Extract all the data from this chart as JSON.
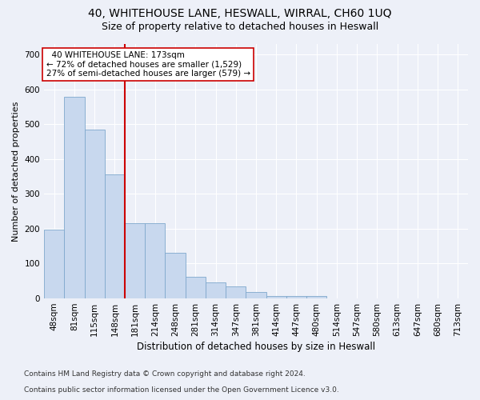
{
  "title1": "40, WHITEHOUSE LANE, HESWALL, WIRRAL, CH60 1UQ",
  "title2": "Size of property relative to detached houses in Heswall",
  "xlabel": "Distribution of detached houses by size in Heswall",
  "ylabel": "Number of detached properties",
  "categories": [
    "48sqm",
    "81sqm",
    "115sqm",
    "148sqm",
    "181sqm",
    "214sqm",
    "248sqm",
    "281sqm",
    "314sqm",
    "347sqm",
    "381sqm",
    "414sqm",
    "447sqm",
    "480sqm",
    "514sqm",
    "547sqm",
    "580sqm",
    "613sqm",
    "647sqm",
    "680sqm",
    "713sqm"
  ],
  "values": [
    197,
    578,
    484,
    355,
    217,
    217,
    130,
    63,
    46,
    35,
    18,
    8,
    8,
    8,
    0,
    0,
    0,
    0,
    0,
    0,
    0
  ],
  "bar_color": "#c8d8ee",
  "bar_edge_color": "#7fa8cc",
  "vline_color": "#cc0000",
  "vline_x_index": 4,
  "annotation_text": "  40 WHITEHOUSE LANE: 173sqm\n← 72% of detached houses are smaller (1,529)\n27% of semi-detached houses are larger (579) →",
  "annotation_box_color": "white",
  "annotation_box_edge": "#cc0000",
  "ylim": [
    0,
    730
  ],
  "yticks": [
    0,
    100,
    200,
    300,
    400,
    500,
    600,
    700
  ],
  "footnote1": "Contains HM Land Registry data © Crown copyright and database right 2024.",
  "footnote2": "Contains public sector information licensed under the Open Government Licence v3.0.",
  "background_color": "#edf0f8",
  "grid_color": "white",
  "title1_fontsize": 10,
  "title2_fontsize": 9,
  "axis_label_fontsize": 8,
  "tick_fontsize": 7.5,
  "footnote_fontsize": 6.5,
  "annotation_fontsize": 7.5
}
